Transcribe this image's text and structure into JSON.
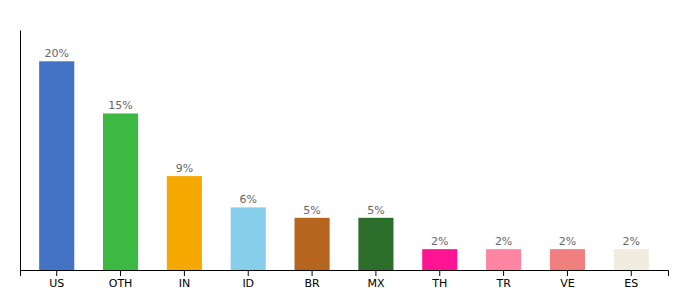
{
  "chart_data": {
    "type": "bar",
    "categories": [
      "US",
      "OTH",
      "IN",
      "ID",
      "BR",
      "MX",
      "TH",
      "TR",
      "VE",
      "ES"
    ],
    "values": [
      20,
      15,
      9,
      6,
      5,
      5,
      2,
      2,
      2,
      2
    ],
    "value_labels": [
      "20%",
      "15%",
      "9%",
      "6%",
      "5%",
      "5%",
      "2%",
      "2%",
      "2%",
      "2%"
    ],
    "colors": [
      "#4472c4",
      "#3cb843",
      "#f5a800",
      "#87ceeb",
      "#b5651d",
      "#2d6e2d",
      "#ff1493",
      "#ff85a2",
      "#f08080",
      "#f0ede0"
    ],
    "ylim": [
      0,
      23
    ],
    "grid": false,
    "data_labels": true,
    "tick_labels": "x"
  }
}
